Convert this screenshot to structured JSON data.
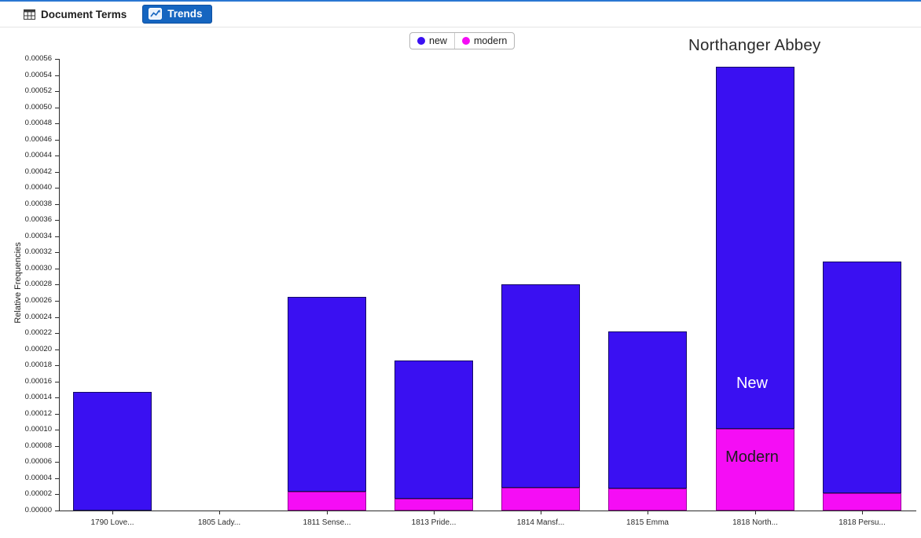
{
  "toolbar": {
    "tabs": [
      {
        "label": "Document Terms",
        "icon": "table-grid-icon",
        "active": false
      },
      {
        "label": "Trends",
        "icon": "line-chart-icon",
        "active": true
      }
    ]
  },
  "legend": {
    "items": [
      {
        "label": "new",
        "color": "#3a10f2"
      },
      {
        "label": "modern",
        "color": "#f50df5"
      }
    ]
  },
  "annotations": {
    "title": "Northanger Abbey",
    "bar_labels": [
      {
        "text": "New",
        "color": "#ffffff",
        "on_bar": "1818 North...",
        "segment": "new"
      },
      {
        "text": "Modern",
        "color": "#1d1d1d",
        "on_bar": "1818 North...",
        "segment": "modern"
      }
    ]
  },
  "chart_data": {
    "type": "bar",
    "stacked": true,
    "title": "",
    "xlabel": "",
    "ylabel": "Relative Frequencies",
    "ylim": [
      0,
      0.00056
    ],
    "ytick_step": 2e-05,
    "ytick_format_decimals": 5,
    "legend_position": "top-center",
    "grid": false,
    "annotation": "Northanger Abbey",
    "categories": [
      "1790 Love...",
      "1805 Lady...",
      "1811 Sense...",
      "1813 Pride...",
      "1814 Mansf...",
      "1815 Emma",
      "1818 North...",
      "1818 Persu..."
    ],
    "series": [
      {
        "name": "modern",
        "color": "#f50df5",
        "values": [
          0,
          0,
          2.3e-05,
          1.5e-05,
          2.8e-05,
          2.7e-05,
          0.000101,
          2.1e-05
        ]
      },
      {
        "name": "new",
        "color": "#3a10f2",
        "values": [
          0.000147,
          0,
          0.000242,
          0.000171,
          0.000252,
          0.000195,
          0.000449,
          0.000288
        ]
      }
    ],
    "totals": [
      0.000147,
      0,
      0.000265,
      0.000186,
      0.00028,
      0.000222,
      0.00055,
      0.000309
    ]
  }
}
